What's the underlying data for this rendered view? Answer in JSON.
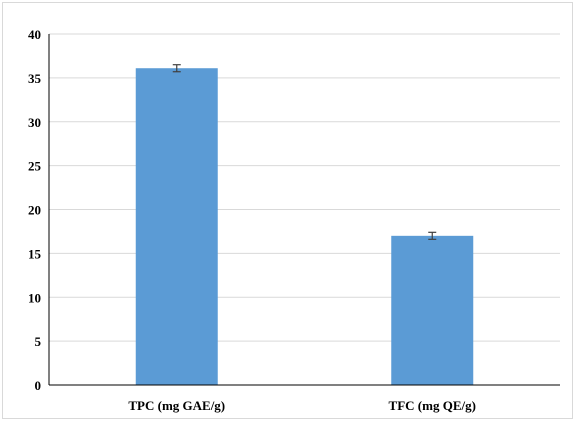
{
  "chart_data": {
    "type": "bar",
    "categories": [
      "TPC (mg GAE/g)",
      "TFC (mg QE/g)"
    ],
    "values": [
      36.1,
      17.0
    ],
    "errors": [
      0.4,
      0.4
    ],
    "title": "",
    "xlabel": "",
    "ylabel": "",
    "ylim": [
      0,
      40
    ],
    "yticks": [
      0,
      5,
      10,
      15,
      20,
      25,
      30,
      35,
      40
    ],
    "grid": true,
    "legend": "none",
    "colors": {
      "bar": "#5b9bd5",
      "grid": "#d9d9d9",
      "axis": "#000000",
      "error": "#404040"
    }
  }
}
